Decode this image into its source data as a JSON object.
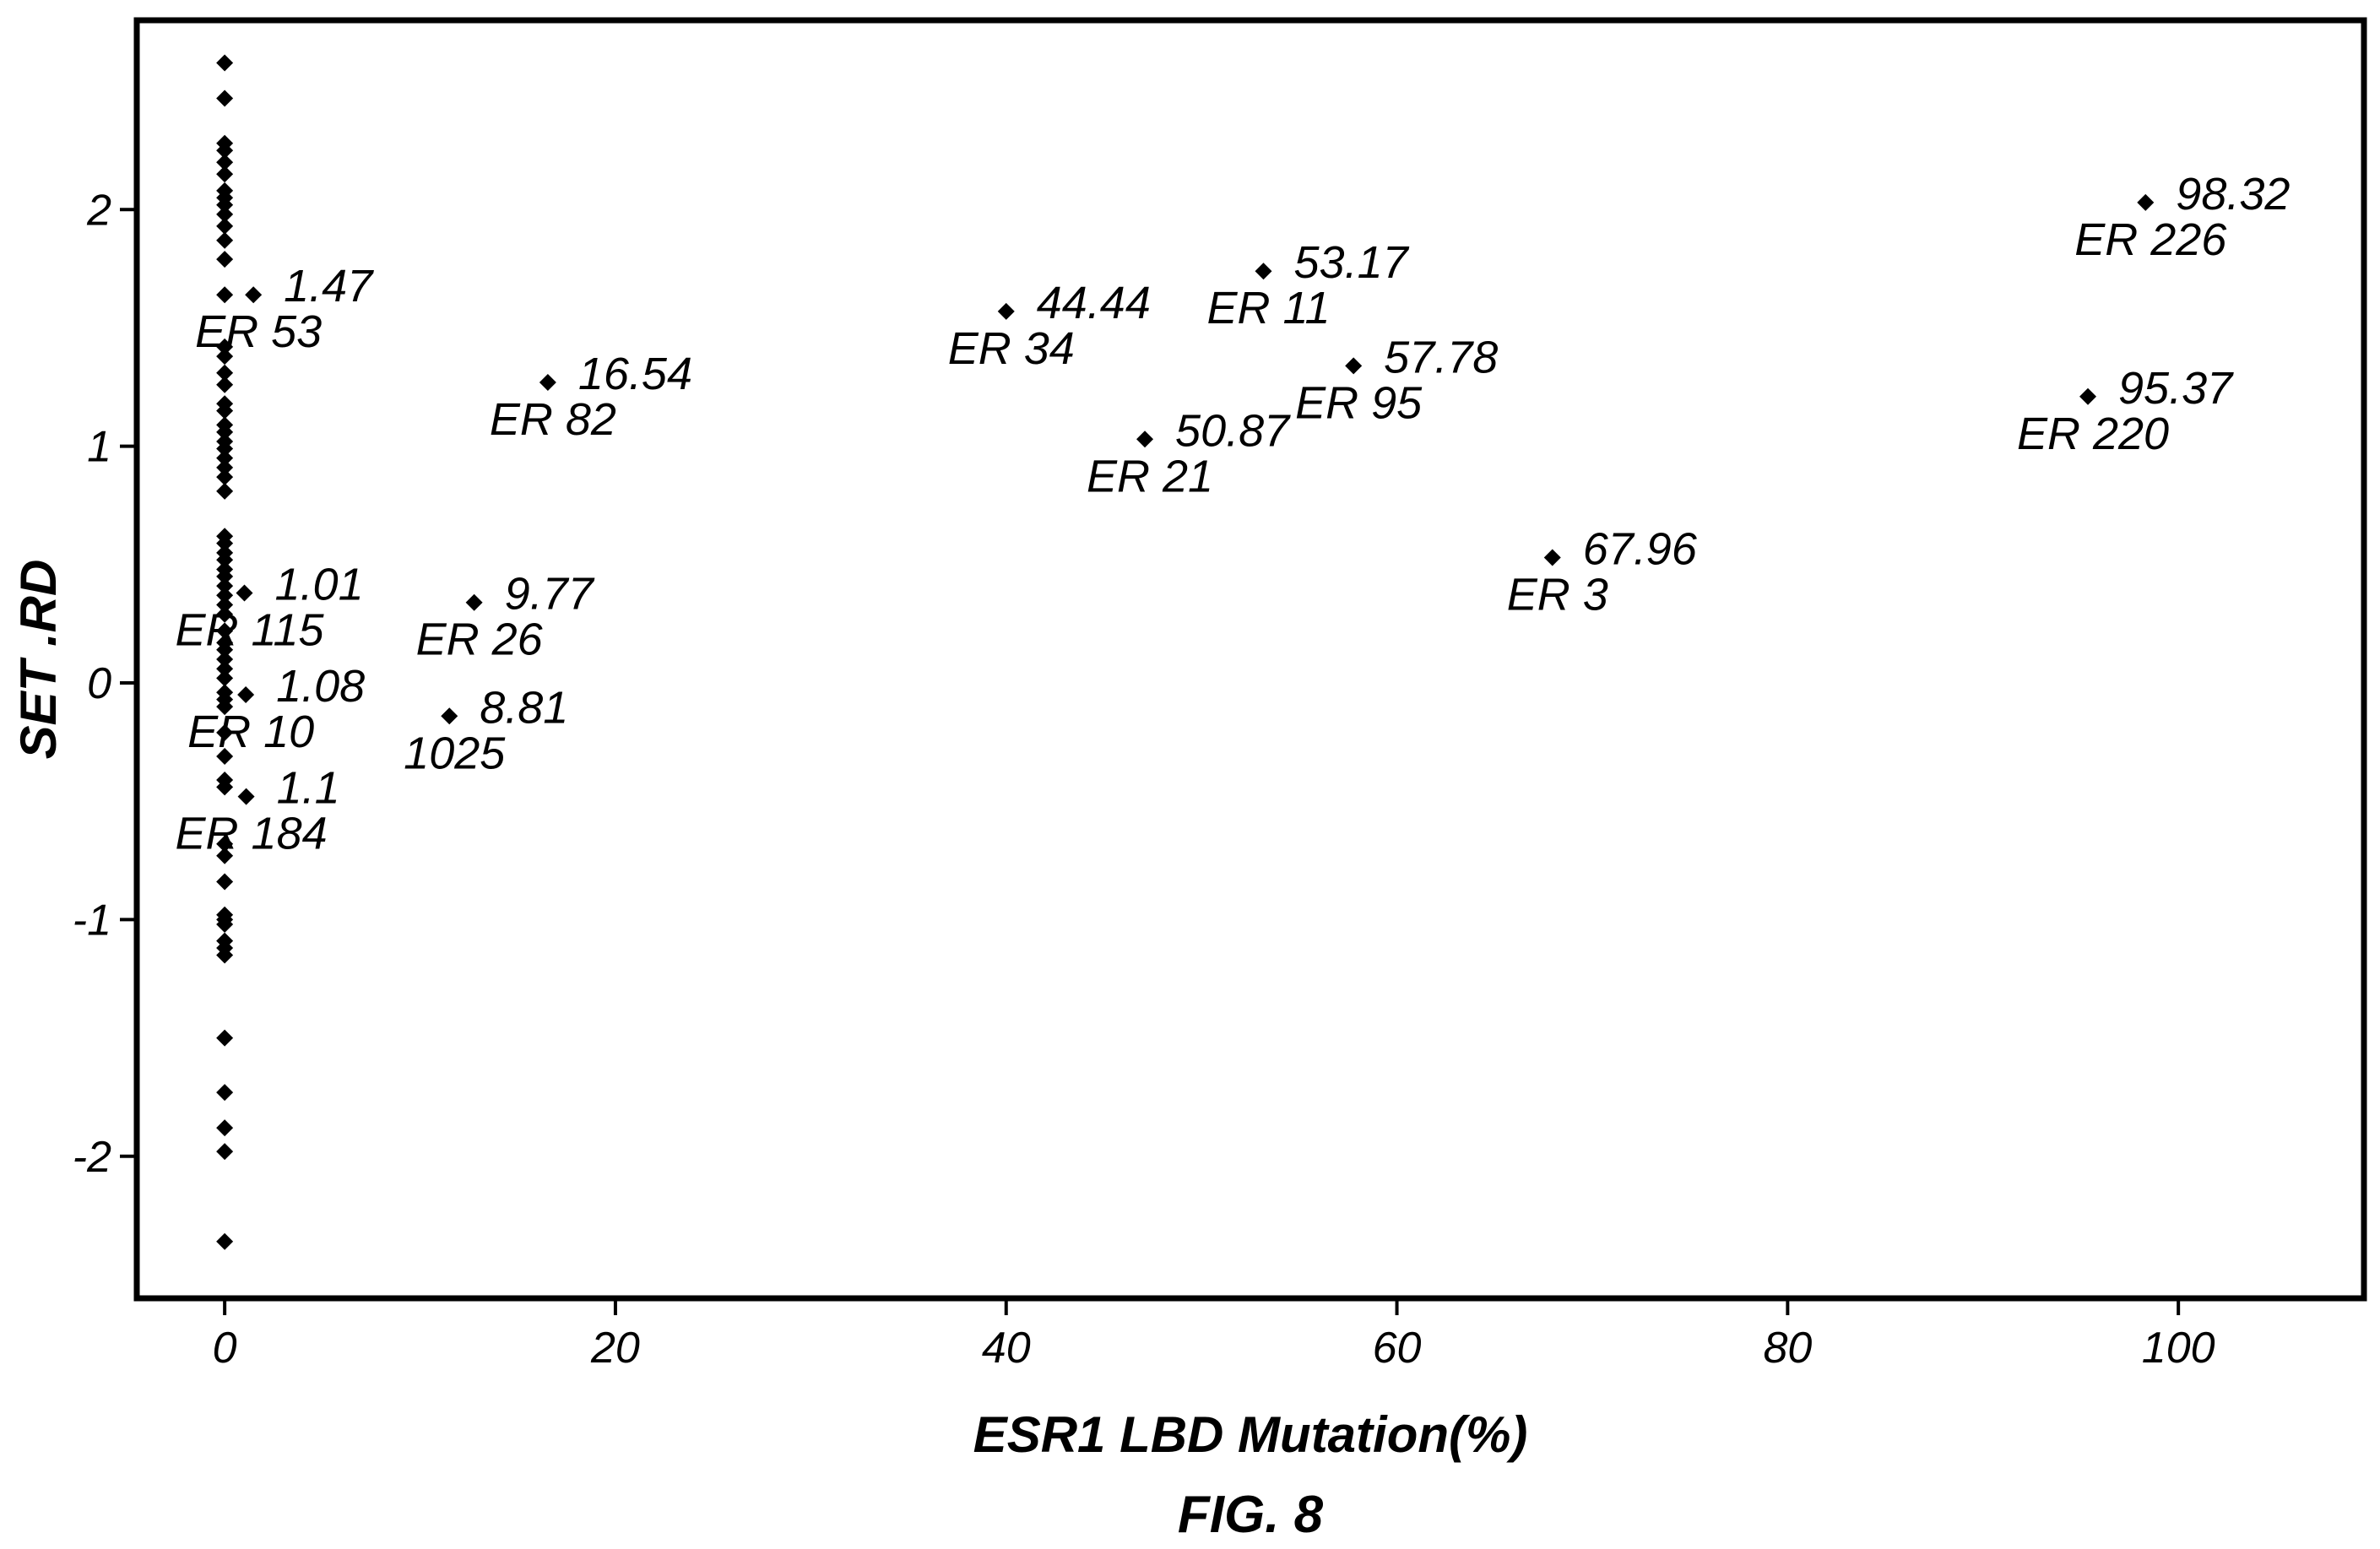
{
  "chart_data": {
    "type": "scatter",
    "title": "",
    "xlabel": "ESR1 LBD Mutation(%)",
    "ylabel": "SET .RD",
    "caption": "FIG. 8",
    "xlim": [
      -4.5,
      109.5
    ],
    "ylim": [
      -2.6,
      2.8
    ],
    "xticks": [
      0,
      20,
      40,
      60,
      80,
      100
    ],
    "xtick_labels": [
      "0",
      "20",
      "40",
      "60",
      "80",
      "100"
    ],
    "yticks": [
      -2,
      -1,
      0,
      1,
      2
    ],
    "ytick_labels": [
      "-2",
      "-1",
      "0",
      "1",
      "2"
    ],
    "grid": false,
    "marker": "diamond",
    "color": "#000000",
    "zero_series": {
      "x": 0,
      "y": [
        2.62,
        2.47,
        2.28,
        2.25,
        2.2,
        2.15,
        2.08,
        2.05,
        2.02,
        1.98,
        1.93,
        1.87,
        1.79,
        1.64,
        1.42,
        1.38,
        1.31,
        1.26,
        1.18,
        1.15,
        1.09,
        1.06,
        1.02,
        0.99,
        0.95,
        0.91,
        0.87,
        0.81,
        0.62,
        0.59,
        0.55,
        0.52,
        0.48,
        0.45,
        0.41,
        0.37,
        0.33,
        0.29,
        0.22,
        0.17,
        0.14,
        0.1,
        0.06,
        0.02,
        -0.04,
        -0.07,
        -0.1,
        -0.21,
        -0.31,
        -0.41,
        -0.44,
        -0.68,
        -0.73,
        -0.84,
        -0.98,
        -1.0,
        -1.02,
        -1.09,
        -1.12,
        -1.15,
        -1.5,
        -1.73,
        -1.88,
        -1.98,
        -2.36
      ]
    },
    "labeled_points": [
      {
        "x": 1.47,
        "y": 1.64,
        "value_label": "1.47",
        "id_label": "ER 53"
      },
      {
        "x": 1.01,
        "y": 0.38,
        "value_label": "1.01",
        "id_label": "ER 115"
      },
      {
        "x": 1.08,
        "y": -0.05,
        "value_label": "1.08",
        "id_label": "ER 10"
      },
      {
        "x": 1.1,
        "y": -0.48,
        "value_label": "1.1",
        "id_label": "ER 184"
      },
      {
        "x": 12.77,
        "y": 0.34,
        "value_label": "9.77",
        "id_label": "ER 26"
      },
      {
        "x": 11.5,
        "y": -0.14,
        "value_label": "8.81",
        "id_label": "1025"
      },
      {
        "x": 16.54,
        "y": 1.27,
        "value_label": "16.54",
        "id_label": "ER 82"
      },
      {
        "x": 40.0,
        "y": 1.57,
        "value_label": "44.44",
        "id_label": "ER 34"
      },
      {
        "x": 47.1,
        "y": 1.03,
        "value_label": "50.87",
        "id_label": "ER 21"
      },
      {
        "x": 53.17,
        "y": 1.74,
        "value_label": "53.17",
        "id_label": "ER 11"
      },
      {
        "x": 57.78,
        "y": 1.34,
        "value_label": "57.78",
        "id_label": "ER 95"
      },
      {
        "x": 67.96,
        "y": 0.53,
        "value_label": "67.96",
        "id_label": "ER 3"
      },
      {
        "x": 95.37,
        "y": 1.21,
        "value_label": "95.37",
        "id_label": "ER 220"
      },
      {
        "x": 98.32,
        "y": 2.03,
        "value_label": "98.32",
        "id_label": "ER 226"
      }
    ]
  }
}
